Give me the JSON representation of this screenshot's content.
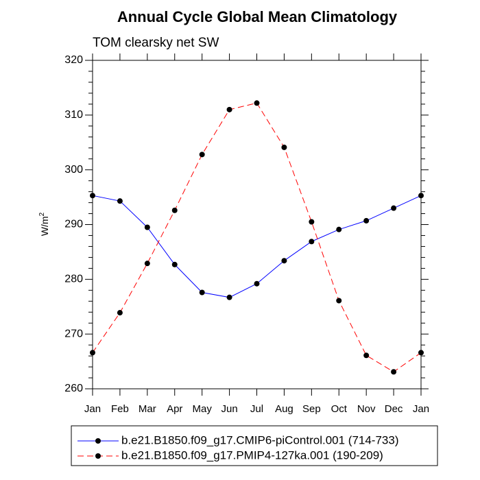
{
  "chart_data": {
    "type": "line",
    "title": "Annual Cycle Global Mean Climatology",
    "subtitle": "TOM clearsky net SW",
    "xlabel": "",
    "ylabel": "W/m",
    "ylabel_superscript": "2",
    "categories": [
      "Jan",
      "Feb",
      "Mar",
      "Apr",
      "May",
      "Jun",
      "Jul",
      "Aug",
      "Sep",
      "Oct",
      "Nov",
      "Dec",
      "Jan"
    ],
    "ylim": [
      260,
      320
    ],
    "yticks": [
      260,
      270,
      280,
      290,
      300,
      310,
      320
    ],
    "grid": false,
    "legend_position": "bottom",
    "series": [
      {
        "name": "b.e21.B1850.f09_g17.CMIP6-piControl.001 (714-733)",
        "color": "#0000ff",
        "dash": "solid",
        "values": [
          295.3,
          294.3,
          289.5,
          282.7,
          277.6,
          276.7,
          279.2,
          283.4,
          286.9,
          289.1,
          290.7,
          293.0,
          295.3
        ]
      },
      {
        "name": "b.e21.B1850.f09_g17.PMIP4-127ka.001 (190-209)",
        "color": "#ff0000",
        "dash": "dashed",
        "values": [
          266.6,
          273.9,
          282.9,
          292.6,
          302.8,
          311.0,
          312.2,
          304.1,
          290.5,
          276.1,
          266.1,
          263.1,
          266.6
        ]
      }
    ]
  }
}
